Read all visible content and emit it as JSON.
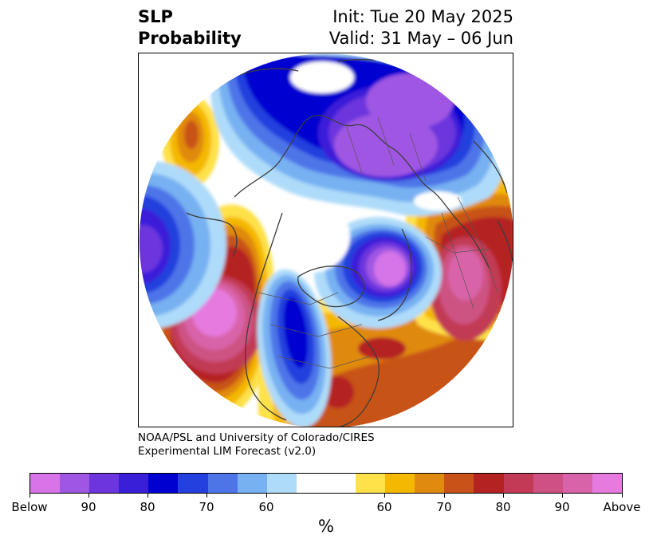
{
  "header": {
    "title_line1": "SLP",
    "title_line2": "Probability",
    "init": "Init: Tue 20 May 2025",
    "valid": "Valid: 31 May – 06 Jun"
  },
  "credit": {
    "line1": "NOAA/PSL and University of Colorado/CIRES",
    "line2": "Experimental LIM Forecast (v2.0)"
  },
  "colorbar": {
    "unit": "%",
    "tick_labels": [
      "Below",
      "90",
      "80",
      "70",
      "60",
      "60",
      "70",
      "80",
      "90",
      "Above"
    ],
    "colors": [
      "#d674e8",
      "#9f57e3",
      "#6c35dd",
      "#3a1fd8",
      "#0000d0",
      "#2440de",
      "#4d75e8",
      "#77b1f2",
      "#aedbf9",
      "#ffffff",
      "#ffe14a",
      "#f5b800",
      "#e08a10",
      "#c85218",
      "#b52222",
      "#c23a55",
      "#cd5283",
      "#d863a9",
      "#e67ade"
    ]
  },
  "map": {
    "projection": "north-polar-stereographic",
    "variable": "sea-level pressure tercile probability",
    "features": [
      "coastlines",
      "country-borders"
    ]
  }
}
